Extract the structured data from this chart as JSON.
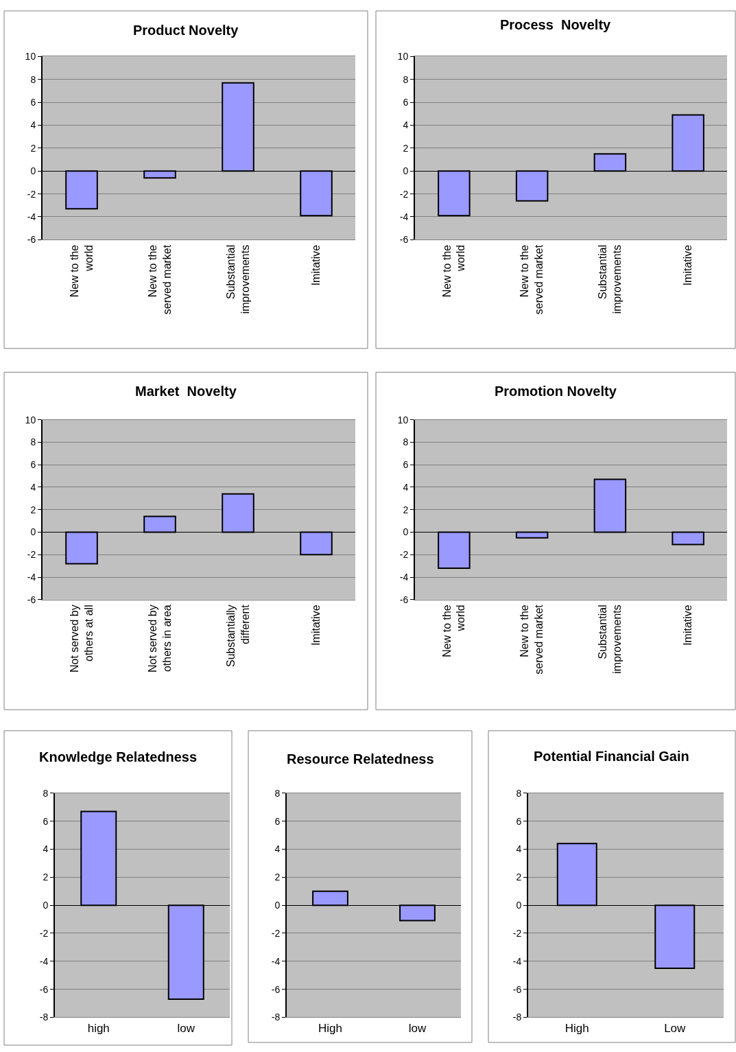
{
  "chart_data": [
    {
      "type": "bar",
      "title": "Product Novelty",
      "categories": [
        "New to the world",
        "New to the served market",
        "Substantial improvements",
        "Imitative"
      ],
      "values": [
        -3.3,
        -0.6,
        7.7,
        -3.9
      ],
      "color": "#9999ff",
      "ylim": [
        -6,
        10
      ],
      "yticks": [
        -6,
        -4,
        -2,
        0,
        2,
        4,
        6,
        8,
        10
      ],
      "grid": "y"
    },
    {
      "type": "bar",
      "title": "Process  Novelty",
      "categories": [
        "New to the world",
        "New to the served market",
        "Substantial improvements",
        "Imitative"
      ],
      "values": [
        -3.9,
        -2.6,
        1.5,
        4.9
      ],
      "color": "#9999ff",
      "ylim": [
        -6,
        10
      ],
      "yticks": [
        -6,
        -4,
        -2,
        0,
        2,
        4,
        6,
        8,
        10
      ],
      "grid": "y"
    },
    {
      "type": "bar",
      "title": "Market  Novelty",
      "categories": [
        "Not served by others at all",
        "Not served by others in area",
        "Substantially different",
        "Imitative"
      ],
      "values": [
        -2.8,
        1.4,
        3.4,
        -2.0
      ],
      "color": "#9999ff",
      "ylim": [
        -6,
        10
      ],
      "yticks": [
        -6,
        -4,
        -2,
        0,
        2,
        4,
        6,
        8,
        10
      ],
      "grid": "y"
    },
    {
      "type": "bar",
      "title": "Promotion Novelty",
      "categories": [
        "New to the world",
        "New to the served market",
        "Substantial improvements",
        "Imitative"
      ],
      "values": [
        -3.2,
        -0.5,
        4.7,
        -1.1
      ],
      "color": "#9999ff",
      "ylim": [
        -6,
        10
      ],
      "yticks": [
        -6,
        -4,
        -2,
        0,
        2,
        4,
        6,
        8,
        10
      ],
      "grid": "y"
    },
    {
      "type": "bar",
      "title": "Knowledge Relatedness",
      "categories": [
        "high",
        "low"
      ],
      "values": [
        6.7,
        -6.7
      ],
      "color": "#9999ff",
      "ylim": [
        -8,
        8
      ],
      "yticks": [
        -8,
        -6,
        -4,
        -2,
        0,
        2,
        4,
        6,
        8
      ],
      "grid": "y"
    },
    {
      "type": "bar",
      "title": "Resource Relatedness",
      "categories": [
        "High",
        "low"
      ],
      "values": [
        1.0,
        -1.1
      ],
      "color": "#9999ff",
      "ylim": [
        -8,
        8
      ],
      "yticks": [
        -8,
        -6,
        -4,
        -2,
        0,
        2,
        4,
        6,
        8
      ],
      "grid": "y"
    },
    {
      "type": "bar",
      "title": "Potential Financial Gain",
      "categories": [
        "High",
        "Low"
      ],
      "values": [
        4.4,
        -4.5
      ],
      "color": "#9999ff",
      "ylim": [
        -8,
        8
      ],
      "yticks": [
        -8,
        -6,
        -4,
        -2,
        0,
        2,
        4,
        6,
        8
      ],
      "grid": "y"
    }
  ]
}
